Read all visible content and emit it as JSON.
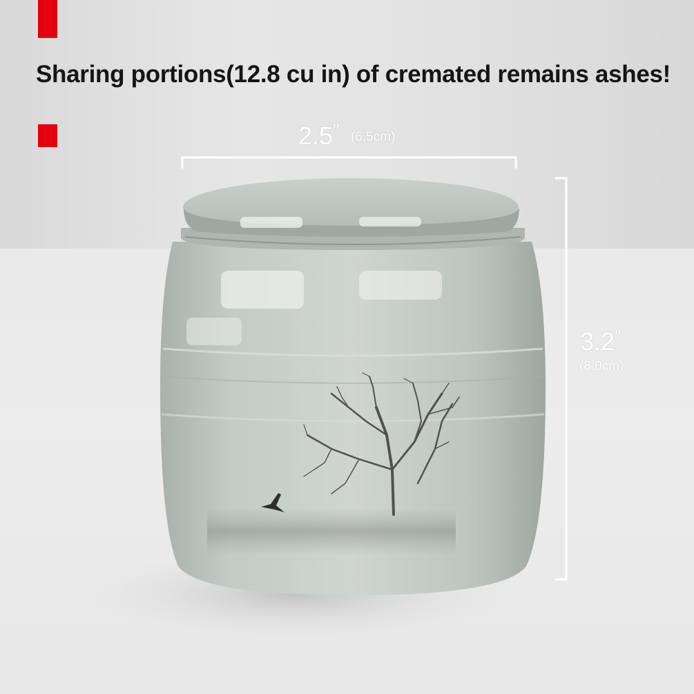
{
  "headline": "Sharing portions(12.8 cu in) of cremated remains ashes!",
  "dimensions": {
    "width": {
      "value": "2.5",
      "unit_mark": "″",
      "metric": "(6.5cm)"
    },
    "height": {
      "value": "3.2",
      "unit_mark": "″",
      "metric": "(8.0cm)"
    }
  },
  "colors": {
    "accent": "#e3000f",
    "jar_body": "#b9c2bc",
    "dimension_line": "#ffffff"
  },
  "icons": {
    "jar": "ceramic-urn-illustration",
    "tree": "tree-illustration",
    "bird": "flying-bird-illustration"
  }
}
